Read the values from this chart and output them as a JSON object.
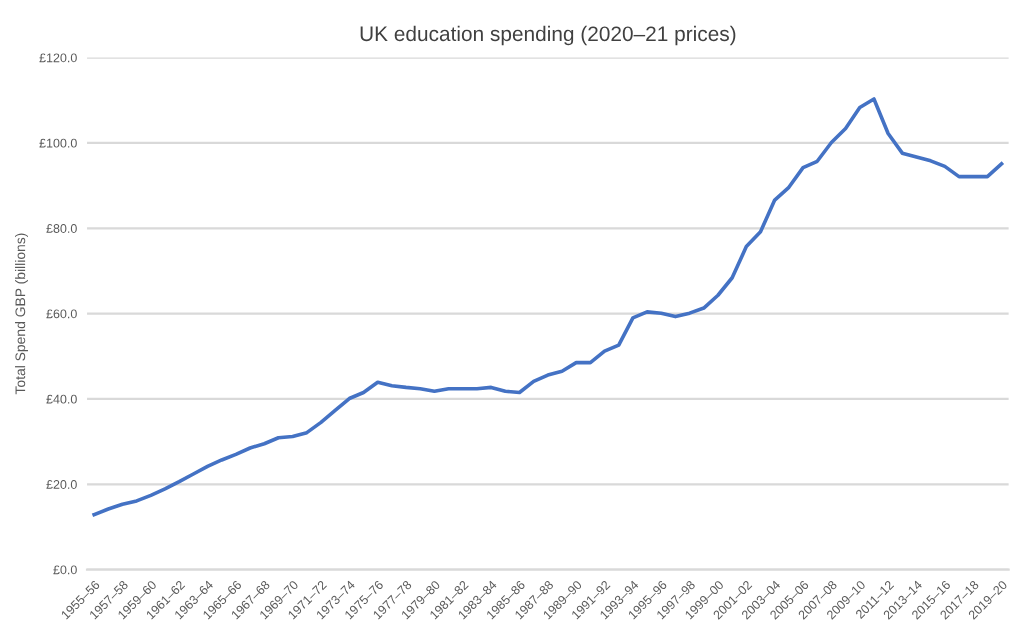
{
  "chart_data": {
    "type": "line",
    "title": "UK education spending (2020–21 prices)",
    "ylabel": "Total Spend GBP (billions)",
    "categories": [
      "1955–56",
      null,
      "1957–58",
      null,
      "1959–60",
      null,
      "1961–62",
      null,
      "1963–64",
      null,
      "1965–66",
      null,
      "1967–68",
      null,
      "1969–70",
      null,
      "1971–72",
      null,
      "1973–74",
      null,
      "1975–76",
      null,
      "1977–78",
      null,
      "1979–80",
      null,
      "1981–82",
      null,
      "1983–84",
      null,
      "1985–86",
      null,
      "1987–88",
      null,
      "1989–90",
      null,
      "1991–92",
      null,
      "1993–94",
      null,
      "1995–96",
      null,
      "1997–98",
      null,
      "1999–00",
      null,
      "2001–02",
      null,
      "2003–04",
      null,
      "2005–06",
      null,
      "2007–08",
      null,
      "2009–10",
      null,
      "2011–12",
      null,
      "2013–14",
      null,
      "2015–16",
      null,
      "2017–18",
      null,
      "2019–20"
    ],
    "series": [
      {
        "color": "#4472c4",
        "values": [
          12.9,
          14.2,
          15.3,
          16.1,
          17.4,
          18.9,
          20.6,
          22.4,
          24.2,
          25.7,
          27.0,
          28.5,
          29.5,
          30.9,
          31.2,
          32.1,
          34.5,
          37.3,
          40.1,
          41.5,
          43.9,
          43.1,
          42.7,
          42.4,
          41.8,
          42.4,
          42.4,
          42.4,
          42.7,
          41.8,
          41.5,
          44.1,
          45.6,
          46.5,
          48.5,
          48.5,
          51.2,
          52.6,
          59.0,
          60.4,
          60.1,
          59.3,
          60.1,
          61.3,
          64.3,
          68.4,
          75.7,
          79.2,
          86.6,
          89.6,
          94.2,
          95.7,
          100.1,
          103.4,
          108.3,
          110.3,
          102.2,
          97.6,
          96.7,
          95.8,
          94.5,
          92.1,
          92.1,
          92.1,
          95.1
        ]
      }
    ],
    "ylim": [
      0,
      120
    ],
    "yticks": [
      {
        "value": 0,
        "label": "£0.0"
      },
      {
        "value": 20,
        "label": "£20.0"
      },
      {
        "value": 40,
        "label": "£40.0"
      },
      {
        "value": 60,
        "label": "£60.0"
      },
      {
        "value": 80,
        "label": "£80.0"
      },
      {
        "value": 100,
        "label": "£100.0"
      },
      {
        "value": 120,
        "label": "£120.0"
      }
    ],
    "grid": "y",
    "marker": "none",
    "line_style": "solid"
  }
}
